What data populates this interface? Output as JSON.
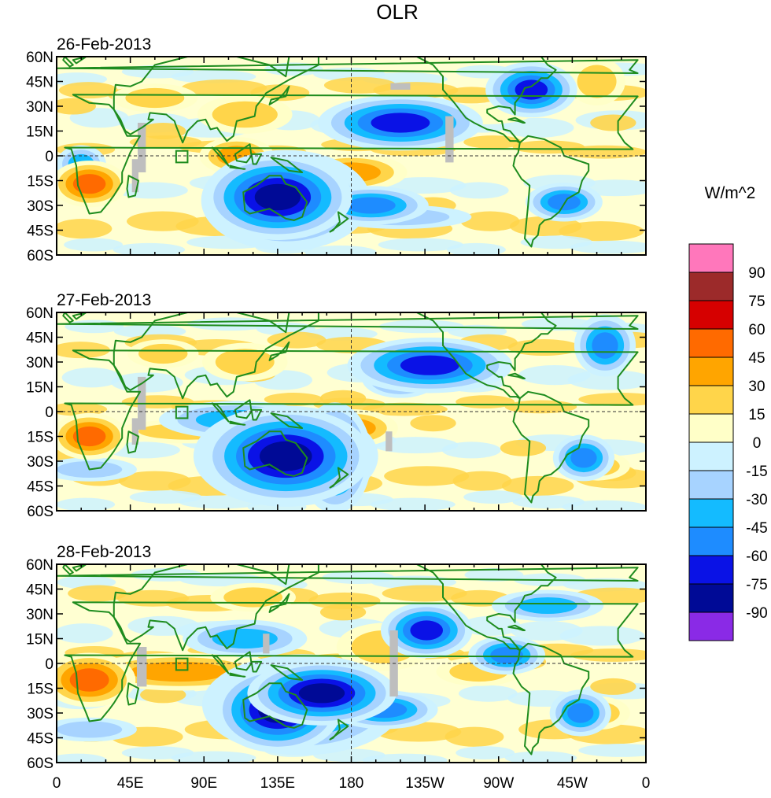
{
  "chart_data": {
    "type": "heatmap",
    "title": "OLR",
    "units_label": "W/m^2",
    "panels": [
      {
        "title": "26-Feb-2013",
        "features": [
          {
            "type": "neg",
            "lon": 135,
            "lat": -25,
            "rx": 14,
            "ry": 8,
            "level": -90
          },
          {
            "type": "neg",
            "lon": 140,
            "lat": -27,
            "rx": 22,
            "ry": 13,
            "level": -60
          },
          {
            "type": "neg",
            "lon": 160,
            "lat": -25,
            "rx": 12,
            "ry": 5,
            "level": -45
          },
          {
            "type": "neg",
            "lon": 192,
            "lat": -30,
            "rx": 15,
            "ry": 5,
            "level": -60
          },
          {
            "type": "neg",
            "lon": 210,
            "lat": 20,
            "rx": 18,
            "ry": 6,
            "level": -75
          },
          {
            "type": "neg",
            "lon": 290,
            "lat": 40,
            "rx": 10,
            "ry": 6,
            "level": -75
          },
          {
            "type": "neg",
            "lon": 310,
            "lat": -28,
            "rx": 10,
            "ry": 5,
            "level": -60
          },
          {
            "type": "neg",
            "lon": 15,
            "lat": -5,
            "rx": 8,
            "ry": 6,
            "level": -45
          },
          {
            "type": "neg",
            "lon": 210,
            "lat": -37,
            "rx": 30,
            "ry": 5,
            "level": -30
          },
          {
            "type": "pos",
            "lon": 20,
            "lat": -17,
            "rx": 10,
            "ry": 6,
            "level": 60
          },
          {
            "type": "pos",
            "lon": 180,
            "lat": -10,
            "rx": 18,
            "ry": 6,
            "level": 45
          },
          {
            "type": "pos",
            "lon": 110,
            "lat": 0,
            "rx": 12,
            "ry": 6,
            "level": 45
          },
          {
            "type": "pos",
            "lon": 115,
            "lat": 25,
            "rx": 20,
            "ry": 8,
            "level": 30
          },
          {
            "type": "pos",
            "lon": 60,
            "lat": 35,
            "rx": 18,
            "ry": 6,
            "level": 30
          },
          {
            "type": "pos",
            "lon": 330,
            "lat": 45,
            "rx": 12,
            "ry": 10,
            "level": 30
          },
          {
            "type": "pos",
            "lon": 260,
            "lat": 25,
            "rx": 30,
            "ry": 6,
            "level": 15
          }
        ],
        "missing": [
          {
            "lon": 52,
            "lat": 5,
            "w": 5,
            "h": 30
          },
          {
            "lon": 48,
            "lat": -12,
            "w": 4,
            "h": 20
          },
          {
            "lon": 210,
            "lat": 42,
            "w": 12,
            "h": 4
          },
          {
            "lon": 240,
            "lat": 10,
            "w": 5,
            "h": 28
          }
        ]
      },
      {
        "title": "27-Feb-2013",
        "features": [
          {
            "type": "neg",
            "lon": 140,
            "lat": -27,
            "rx": 16,
            "ry": 9,
            "level": -90
          },
          {
            "type": "neg",
            "lon": 140,
            "lat": -27,
            "rx": 24,
            "ry": 13,
            "level": -60
          },
          {
            "type": "neg",
            "lon": 170,
            "lat": -28,
            "rx": 8,
            "ry": 12,
            "level": -75
          },
          {
            "type": "neg",
            "lon": 228,
            "lat": 28,
            "rx": 18,
            "ry": 6,
            "level": -75
          },
          {
            "type": "neg",
            "lon": 210,
            "lat": 20,
            "rx": 10,
            "ry": 5,
            "level": -60
          },
          {
            "type": "neg",
            "lon": 322,
            "lat": -28,
            "rx": 8,
            "ry": 6,
            "level": -60
          },
          {
            "type": "neg",
            "lon": 335,
            "lat": 40,
            "rx": 8,
            "ry": 8,
            "level": -60
          },
          {
            "type": "neg",
            "lon": 110,
            "lat": -5,
            "rx": 25,
            "ry": 6,
            "level": -45
          },
          {
            "type": "neg",
            "lon": 20,
            "lat": -35,
            "rx": 20,
            "ry": 5,
            "level": -30
          },
          {
            "type": "pos",
            "lon": 20,
            "lat": -15,
            "rx": 10,
            "ry": 6,
            "level": 60
          },
          {
            "type": "pos",
            "lon": 180,
            "lat": -10,
            "rx": 15,
            "ry": 6,
            "level": 45
          },
          {
            "type": "pos",
            "lon": 115,
            "lat": 30,
            "rx": 18,
            "ry": 8,
            "level": 30
          },
          {
            "type": "pos",
            "lon": 65,
            "lat": 35,
            "rx": 15,
            "ry": 6,
            "level": 30
          },
          {
            "type": "pos",
            "lon": 80,
            "lat": -12,
            "rx": 30,
            "ry": 5,
            "level": 30
          },
          {
            "type": "pos",
            "lon": 330,
            "lat": -33,
            "rx": 14,
            "ry": 6,
            "level": 30
          }
        ],
        "missing": [
          {
            "lon": 52,
            "lat": 5,
            "w": 5,
            "h": 32
          },
          {
            "lon": 48,
            "lat": -12,
            "w": 4,
            "h": 16
          },
          {
            "lon": 203,
            "lat": -18,
            "w": 4,
            "h": 12
          }
        ]
      },
      {
        "title": "28-Feb-2013",
        "features": [
          {
            "type": "neg",
            "lon": 135,
            "lat": -28,
            "rx": 12,
            "ry": 8,
            "level": -90
          },
          {
            "type": "neg",
            "lon": 162,
            "lat": -18,
            "rx": 14,
            "ry": 6,
            "level": -90
          },
          {
            "type": "neg",
            "lon": 150,
            "lat": -25,
            "rx": 26,
            "ry": 13,
            "level": -60
          },
          {
            "type": "neg",
            "lon": 200,
            "lat": -28,
            "rx": 14,
            "ry": 5,
            "level": -60
          },
          {
            "type": "neg",
            "lon": 226,
            "lat": 20,
            "rx": 10,
            "ry": 6,
            "level": -75
          },
          {
            "type": "neg",
            "lon": 275,
            "lat": 5,
            "rx": 10,
            "ry": 5,
            "level": -60
          },
          {
            "type": "neg",
            "lon": 300,
            "lat": 35,
            "rx": 18,
            "ry": 5,
            "level": -45
          },
          {
            "type": "neg",
            "lon": 320,
            "lat": -30,
            "rx": 8,
            "ry": 6,
            "level": -60
          },
          {
            "type": "neg",
            "lon": 115,
            "lat": 15,
            "rx": 20,
            "ry": 6,
            "level": -45
          },
          {
            "type": "neg",
            "lon": 20,
            "lat": -40,
            "rx": 20,
            "ry": 5,
            "level": -30
          },
          {
            "type": "pos",
            "lon": 20,
            "lat": -10,
            "rx": 12,
            "ry": 7,
            "level": 60
          },
          {
            "type": "pos",
            "lon": 75,
            "lat": -5,
            "rx": 30,
            "ry": 6,
            "level": 45
          },
          {
            "type": "pos",
            "lon": 120,
            "lat": 40,
            "rx": 18,
            "ry": 6,
            "level": 30
          },
          {
            "type": "pos",
            "lon": 200,
            "lat": 10,
            "rx": 20,
            "ry": 10,
            "level": 30
          },
          {
            "type": "pos",
            "lon": 330,
            "lat": -30,
            "rx": 14,
            "ry": 7,
            "level": 30
          },
          {
            "type": "pos",
            "lon": 258,
            "lat": -5,
            "rx": 18,
            "ry": 6,
            "level": 30
          }
        ],
        "missing": [
          {
            "lon": 52,
            "lat": -2,
            "w": 6,
            "h": 24
          },
          {
            "lon": 128,
            "lat": 12,
            "w": 4,
            "h": 12
          },
          {
            "lon": 206,
            "lat": 0,
            "w": 5,
            "h": 40
          }
        ]
      }
    ],
    "lon_ticks": [
      {
        "lon": 0,
        "label": "0"
      },
      {
        "lon": 45,
        "label": "45E"
      },
      {
        "lon": 90,
        "label": "90E"
      },
      {
        "lon": 135,
        "label": "135E"
      },
      {
        "lon": 180,
        "label": "180"
      },
      {
        "lon": 225,
        "label": "135W"
      },
      {
        "lon": 270,
        "label": "90W"
      },
      {
        "lon": 315,
        "label": "45W"
      },
      {
        "lon": 360,
        "label": "0"
      }
    ],
    "lat_ticks": [
      {
        "lat": 60,
        "label": "60N"
      },
      {
        "lat": 45,
        "label": "45N"
      },
      {
        "lat": 30,
        "label": "30N"
      },
      {
        "lat": 15,
        "label": "15N"
      },
      {
        "lat": 0,
        "label": "0"
      },
      {
        "lat": -15,
        "label": "15S"
      },
      {
        "lat": -30,
        "label": "30S"
      },
      {
        "lat": -45,
        "label": "45S"
      },
      {
        "lat": -60,
        "label": "60S"
      }
    ],
    "colorbar": {
      "labels": [
        "90",
        "75",
        "60",
        "45",
        "30",
        "15",
        "0",
        "-15",
        "-30",
        "-45",
        "-60",
        "-75",
        "-90"
      ],
      "colors": [
        "#ff77bb",
        "#9c2a2a",
        "#d60000",
        "#ff6a00",
        "#ffa500",
        "#ffd54a",
        "#ffffc8",
        "#cdf2ff",
        "#a7d3ff",
        "#14bbff",
        "#1e8cff",
        "#0a12e6",
        "#000a96",
        "#8a2ae6"
      ]
    },
    "missing_color": "#bebebe",
    "coastline_color": "#1e8c1e"
  }
}
